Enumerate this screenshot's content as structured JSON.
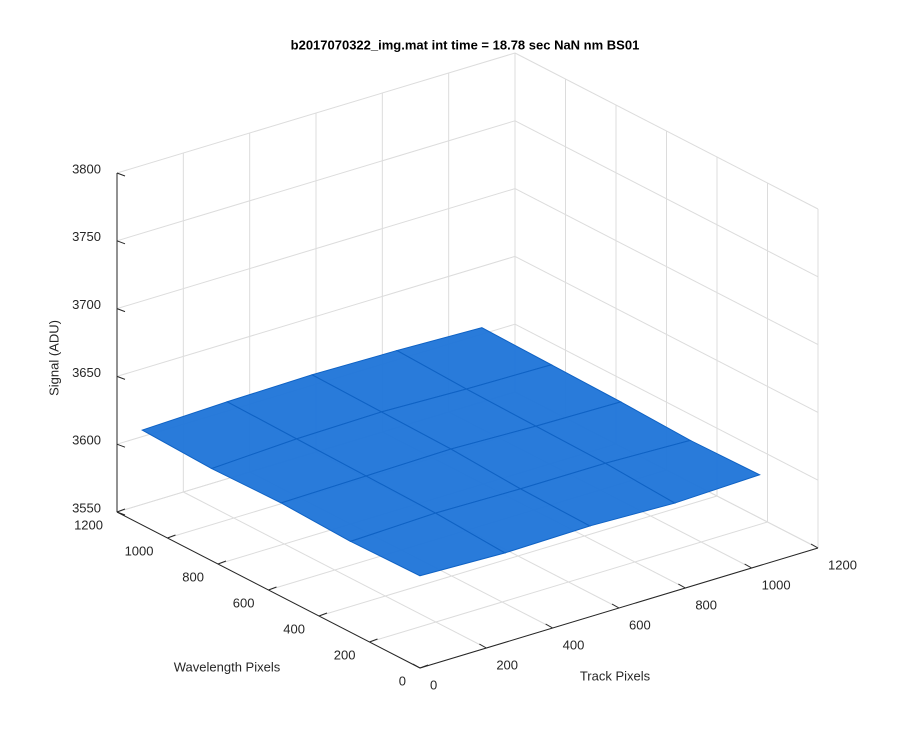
{
  "chart_data": {
    "type": "surface3d",
    "title": "b2017070322_img.mat int time = 18.78 sec  NaN nm BS01",
    "xlabel": "Track Pixels",
    "ylabel": "Wavelength Pixels",
    "zlabel": "Signal (ADU)",
    "x": [
      0,
      256,
      512,
      768,
      1024
    ],
    "y": [
      0,
      275,
      550,
      825,
      1100
    ],
    "z": [
      [
        3618,
        3616,
        3617,
        3615,
        3617
      ],
      [
        3617,
        3619,
        3618,
        3618,
        3616
      ],
      [
        3619,
        3620,
        3621,
        3619,
        3618
      ],
      [
        3618,
        3621,
        3622,
        3620,
        3619
      ],
      [
        3620,
        3622,
        3623,
        3622,
        3620
      ]
    ],
    "color": "#1d74d8",
    "xlim": [
      0,
      1200
    ],
    "xticks": [
      0,
      200,
      400,
      600,
      800,
      1000,
      1200
    ],
    "ylim": [
      0,
      1200
    ],
    "yticks": [
      0,
      200,
      400,
      600,
      800,
      1000,
      1200
    ],
    "zlim": [
      3550,
      3800
    ],
    "zticks": [
      3550,
      3600,
      3650,
      3700,
      3750,
      3800
    ],
    "grid": true
  }
}
